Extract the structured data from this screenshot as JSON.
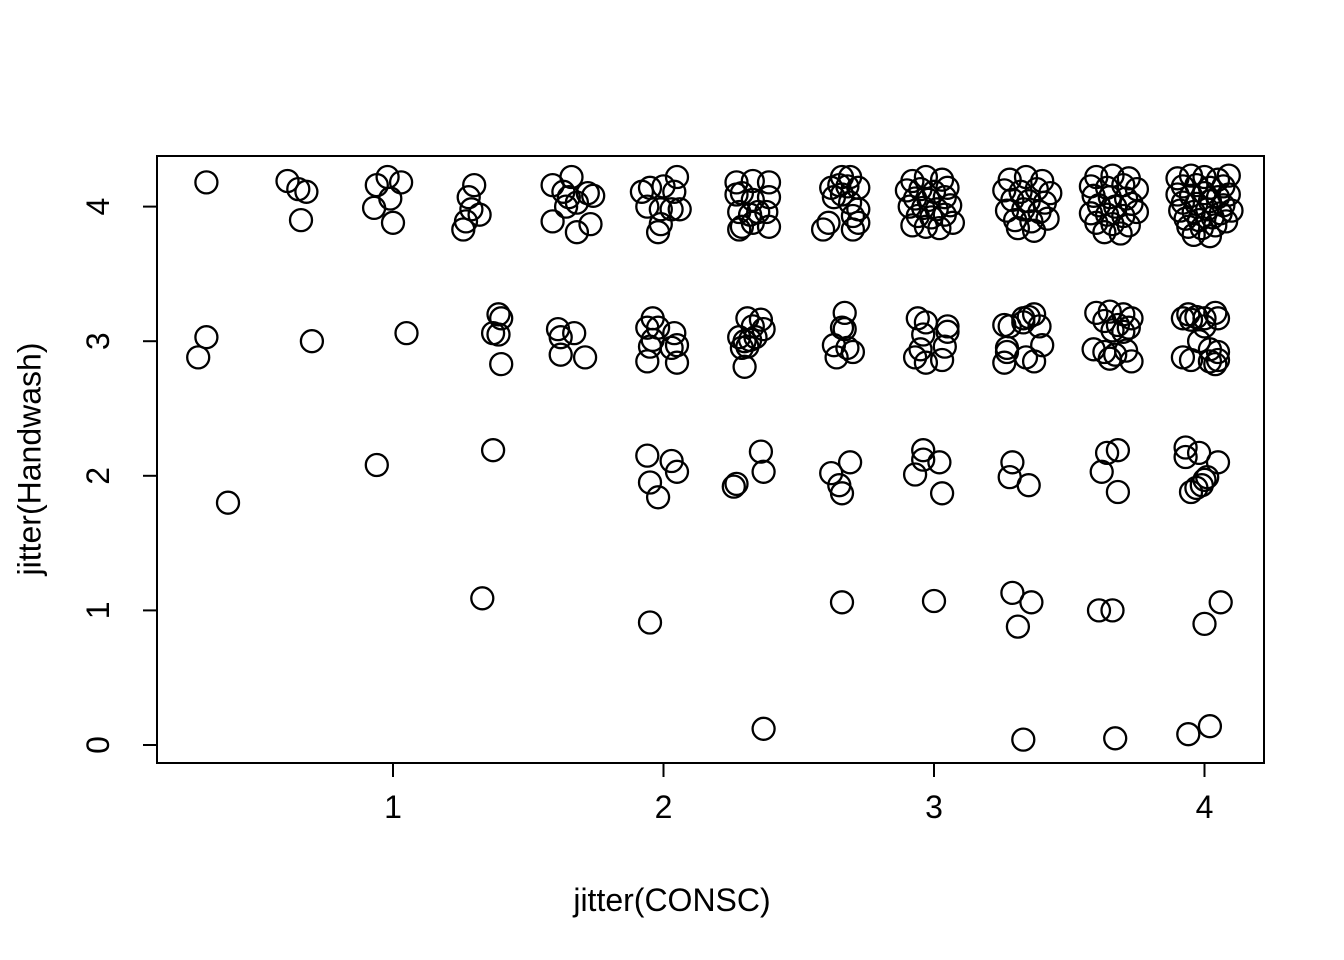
{
  "figure": {
    "background": "#ffffff",
    "foreground": "#000000"
  },
  "chart_data": {
    "type": "scatter",
    "title": "",
    "xlabel": "jitter(CONSC)",
    "ylabel": "jitter(Handwash)",
    "x_ticks": [
      1,
      2,
      3,
      4
    ],
    "y_ticks": [
      0,
      1,
      2,
      3,
      4
    ],
    "xlim": [
      0.12,
      4.22
    ],
    "ylim": [
      -0.12,
      4.37
    ],
    "grid": false,
    "legend": null,
    "marker": {
      "shape": "open-circle",
      "color": "#000000",
      "radius_px": 11,
      "stroke_px": 2.3
    },
    "description": "Jittered scatter of Handwash rating (0-4) vs CONSC score (thirds from 1/3 to 4); point density increases toward high CONSC and high Handwash",
    "points": [
      [
        0.31,
        4.18
      ],
      [
        0.61,
        4.19
      ],
      [
        0.65,
        4.13
      ],
      [
        0.68,
        4.11
      ],
      [
        0.66,
        3.9
      ],
      [
        0.94,
        4.16
      ],
      [
        0.98,
        4.22
      ],
      [
        1.03,
        4.18
      ],
      [
        0.99,
        4.06
      ],
      [
        0.93,
        3.99
      ],
      [
        1.0,
        3.88
      ],
      [
        1.3,
        4.16
      ],
      [
        1.28,
        4.07
      ],
      [
        1.29,
        3.98
      ],
      [
        1.27,
        3.89
      ],
      [
        1.26,
        3.83
      ],
      [
        1.32,
        3.94
      ],
      [
        1.66,
        4.22
      ],
      [
        1.59,
        4.16
      ],
      [
        1.63,
        4.11
      ],
      [
        1.65,
        4.07
      ],
      [
        1.68,
        4.03
      ],
      [
        1.72,
        4.1
      ],
      [
        1.74,
        4.08
      ],
      [
        1.64,
        4.0
      ],
      [
        1.59,
        3.89
      ],
      [
        1.68,
        3.81
      ],
      [
        1.73,
        3.87
      ],
      [
        2.05,
        4.22
      ],
      [
        1.95,
        4.14
      ],
      [
        1.92,
        4.11
      ],
      [
        2.0,
        4.15
      ],
      [
        2.04,
        4.11
      ],
      [
        1.94,
        4.0
      ],
      [
        1.99,
        3.98
      ],
      [
        2.03,
        3.98
      ],
      [
        2.06,
        3.98
      ],
      [
        1.99,
        3.87
      ],
      [
        1.98,
        3.81
      ],
      [
        2.27,
        4.18
      ],
      [
        2.33,
        4.19
      ],
      [
        2.39,
        4.18
      ],
      [
        2.27,
        4.09
      ],
      [
        2.29,
        4.1
      ],
      [
        2.39,
        4.07
      ],
      [
        2.33,
        4.05
      ],
      [
        2.28,
        3.96
      ],
      [
        2.32,
        3.94
      ],
      [
        2.35,
        3.96
      ],
      [
        2.38,
        3.96
      ],
      [
        2.29,
        3.85
      ],
      [
        2.28,
        3.83
      ],
      [
        2.33,
        3.88
      ],
      [
        2.39,
        3.85
      ],
      [
        2.66,
        4.22
      ],
      [
        2.69,
        4.22
      ],
      [
        2.62,
        4.14
      ],
      [
        2.65,
        4.16
      ],
      [
        2.68,
        4.15
      ],
      [
        2.72,
        4.14
      ],
      [
        2.63,
        4.07
      ],
      [
        2.66,
        4.09
      ],
      [
        2.69,
        4.03
      ],
      [
        2.72,
        3.98
      ],
      [
        2.7,
        3.93
      ],
      [
        2.72,
        3.88
      ],
      [
        2.7,
        3.83
      ],
      [
        2.61,
        3.88
      ],
      [
        2.59,
        3.83
      ],
      [
        2.92,
        4.19
      ],
      [
        2.97,
        4.22
      ],
      [
        3.03,
        4.2
      ],
      [
        2.9,
        4.12
      ],
      [
        2.95,
        4.13
      ],
      [
        3.0,
        4.11
      ],
      [
        3.05,
        4.14
      ],
      [
        2.93,
        4.06
      ],
      [
        2.98,
        4.05
      ],
      [
        3.04,
        4.07
      ],
      [
        2.91,
        4.0
      ],
      [
        2.96,
        3.99
      ],
      [
        3.01,
        3.98
      ],
      [
        3.06,
        4.01
      ],
      [
        2.94,
        3.93
      ],
      [
        2.99,
        3.92
      ],
      [
        3.04,
        3.94
      ],
      [
        2.92,
        3.86
      ],
      [
        2.97,
        3.85
      ],
      [
        3.02,
        3.84
      ],
      [
        3.07,
        3.88
      ],
      [
        3.28,
        4.2
      ],
      [
        3.34,
        4.22
      ],
      [
        3.4,
        4.19
      ],
      [
        3.26,
        4.12
      ],
      [
        3.32,
        4.11
      ],
      [
        3.38,
        4.13
      ],
      [
        3.43,
        4.1
      ],
      [
        3.29,
        4.05
      ],
      [
        3.35,
        4.04
      ],
      [
        3.41,
        4.03
      ],
      [
        3.27,
        3.97
      ],
      [
        3.33,
        3.98
      ],
      [
        3.39,
        3.96
      ],
      [
        3.3,
        3.9
      ],
      [
        3.36,
        3.89
      ],
      [
        3.42,
        3.91
      ],
      [
        3.31,
        3.84
      ],
      [
        3.37,
        3.82
      ],
      [
        3.6,
        4.22
      ],
      [
        3.66,
        4.23
      ],
      [
        3.72,
        4.21
      ],
      [
        3.58,
        4.15
      ],
      [
        3.64,
        4.14
      ],
      [
        3.7,
        4.16
      ],
      [
        3.75,
        4.13
      ],
      [
        3.59,
        4.08
      ],
      [
        3.65,
        4.07
      ],
      [
        3.71,
        4.06
      ],
      [
        3.61,
        4.01
      ],
      [
        3.67,
        4.0
      ],
      [
        3.73,
        4.02
      ],
      [
        3.58,
        3.95
      ],
      [
        3.64,
        3.94
      ],
      [
        3.7,
        3.93
      ],
      [
        3.75,
        3.96
      ],
      [
        3.6,
        3.88
      ],
      [
        3.66,
        3.87
      ],
      [
        3.72,
        3.86
      ],
      [
        3.63,
        3.81
      ],
      [
        3.69,
        3.8
      ],
      [
        3.9,
        4.21
      ],
      [
        3.95,
        4.23
      ],
      [
        4.0,
        4.22
      ],
      [
        4.05,
        4.2
      ],
      [
        4.09,
        4.23
      ],
      [
        3.92,
        4.15
      ],
      [
        3.97,
        4.16
      ],
      [
        4.02,
        4.14
      ],
      [
        4.07,
        4.15
      ],
      [
        3.9,
        4.09
      ],
      [
        3.95,
        4.08
      ],
      [
        4.0,
        4.1
      ],
      [
        4.05,
        4.07
      ],
      [
        4.09,
        4.09
      ],
      [
        3.92,
        4.03
      ],
      [
        3.97,
        4.02
      ],
      [
        4.02,
        4.04
      ],
      [
        4.07,
        4.01
      ],
      [
        3.91,
        3.97
      ],
      [
        3.96,
        3.96
      ],
      [
        4.01,
        3.98
      ],
      [
        4.06,
        3.95
      ],
      [
        4.1,
        3.97
      ],
      [
        3.93,
        3.91
      ],
      [
        3.98,
        3.9
      ],
      [
        4.03,
        3.92
      ],
      [
        4.08,
        3.89
      ],
      [
        3.94,
        3.85
      ],
      [
        3.99,
        3.84
      ],
      [
        4.04,
        3.86
      ],
      [
        3.96,
        3.79
      ],
      [
        4.02,
        3.78
      ],
      [
        0.31,
        3.03
      ],
      [
        0.28,
        2.88
      ],
      [
        0.7,
        3.0
      ],
      [
        1.05,
        3.06
      ],
      [
        1.39,
        3.2
      ],
      [
        1.4,
        3.17
      ],
      [
        1.37,
        3.06
      ],
      [
        1.39,
        3.05
      ],
      [
        1.4,
        2.83
      ],
      [
        1.61,
        3.09
      ],
      [
        1.62,
        3.03
      ],
      [
        1.67,
        3.06
      ],
      [
        1.62,
        2.9
      ],
      [
        1.71,
        2.88
      ],
      [
        1.96,
        3.17
      ],
      [
        1.94,
        3.1
      ],
      [
        1.98,
        3.1
      ],
      [
        2.04,
        3.06
      ],
      [
        1.96,
        3.01
      ],
      [
        1.95,
        2.96
      ],
      [
        2.03,
        2.95
      ],
      [
        2.05,
        2.97
      ],
      [
        1.94,
        2.85
      ],
      [
        2.05,
        2.84
      ],
      [
        2.31,
        3.17
      ],
      [
        2.36,
        3.16
      ],
      [
        2.37,
        3.09
      ],
      [
        2.33,
        3.11
      ],
      [
        2.28,
        3.03
      ],
      [
        2.3,
        3.0
      ],
      [
        2.32,
        3.01
      ],
      [
        2.34,
        3.03
      ],
      [
        2.29,
        2.95
      ],
      [
        2.31,
        2.96
      ],
      [
        2.3,
        2.81
      ],
      [
        2.67,
        3.21
      ],
      [
        2.66,
        3.1
      ],
      [
        2.67,
        3.09
      ],
      [
        2.63,
        2.97
      ],
      [
        2.68,
        2.95
      ],
      [
        2.7,
        2.92
      ],
      [
        2.64,
        2.88
      ],
      [
        2.94,
        3.17
      ],
      [
        2.97,
        3.14
      ],
      [
        2.96,
        3.05
      ],
      [
        3.05,
        3.11
      ],
      [
        3.05,
        3.07
      ],
      [
        3.04,
        2.96
      ],
      [
        2.95,
        2.94
      ],
      [
        2.93,
        2.88
      ],
      [
        2.97,
        2.84
      ],
      [
        3.03,
        2.86
      ],
      [
        3.26,
        3.12
      ],
      [
        3.28,
        3.11
      ],
      [
        3.33,
        3.17
      ],
      [
        3.35,
        3.18
      ],
      [
        3.33,
        3.14
      ],
      [
        3.37,
        3.2
      ],
      [
        3.39,
        3.11
      ],
      [
        3.4,
        2.97
      ],
      [
        3.27,
        2.95
      ],
      [
        3.27,
        2.92
      ],
      [
        3.26,
        2.84
      ],
      [
        3.34,
        2.88
      ],
      [
        3.37,
        2.85
      ],
      [
        3.6,
        3.21
      ],
      [
        3.65,
        3.22
      ],
      [
        3.7,
        3.2
      ],
      [
        3.73,
        3.17
      ],
      [
        3.63,
        3.15
      ],
      [
        3.68,
        3.12
      ],
      [
        3.72,
        3.1
      ],
      [
        3.66,
        3.08
      ],
      [
        3.7,
        3.07
      ],
      [
        3.59,
        2.94
      ],
      [
        3.63,
        2.92
      ],
      [
        3.67,
        2.9
      ],
      [
        3.71,
        2.93
      ],
      [
        3.65,
        2.87
      ],
      [
        3.73,
        2.85
      ],
      [
        3.92,
        3.17
      ],
      [
        3.94,
        3.2
      ],
      [
        3.95,
        3.16
      ],
      [
        3.97,
        3.18
      ],
      [
        4.0,
        3.17
      ],
      [
        4.04,
        3.21
      ],
      [
        4.05,
        3.17
      ],
      [
        4.0,
        3.11
      ],
      [
        3.98,
        3.0
      ],
      [
        3.92,
        2.88
      ],
      [
        3.95,
        2.86
      ],
      [
        4.02,
        2.94
      ],
      [
        4.05,
        2.92
      ],
      [
        4.02,
        2.85
      ],
      [
        4.04,
        2.83
      ],
      [
        4.05,
        2.86
      ],
      [
        0.39,
        1.8
      ],
      [
        0.94,
        2.08
      ],
      [
        1.37,
        2.19
      ],
      [
        1.94,
        2.15
      ],
      [
        2.03,
        2.11
      ],
      [
        2.05,
        2.03
      ],
      [
        1.95,
        1.95
      ],
      [
        1.98,
        1.84
      ],
      [
        2.36,
        2.18
      ],
      [
        2.37,
        2.03
      ],
      [
        2.26,
        1.92
      ],
      [
        2.27,
        1.94
      ],
      [
        2.69,
        2.1
      ],
      [
        2.62,
        2.02
      ],
      [
        2.65,
        1.93
      ],
      [
        2.66,
        1.87
      ],
      [
        2.96,
        2.19
      ],
      [
        2.96,
        2.12
      ],
      [
        3.02,
        2.1
      ],
      [
        2.93,
        2.01
      ],
      [
        3.03,
        1.87
      ],
      [
        3.29,
        2.1
      ],
      [
        3.28,
        1.99
      ],
      [
        3.35,
        1.93
      ],
      [
        3.64,
        2.17
      ],
      [
        3.68,
        2.19
      ],
      [
        3.62,
        2.03
      ],
      [
        3.68,
        1.88
      ],
      [
        3.93,
        2.21
      ],
      [
        3.93,
        2.14
      ],
      [
        3.98,
        2.17
      ],
      [
        4.05,
        2.1
      ],
      [
        4.0,
        1.97
      ],
      [
        4.01,
        1.99
      ],
      [
        3.97,
        1.91
      ],
      [
        3.99,
        1.93
      ],
      [
        3.95,
        1.88
      ],
      [
        1.33,
        1.09
      ],
      [
        1.95,
        0.91
      ],
      [
        2.66,
        1.06
      ],
      [
        3.0,
        1.07
      ],
      [
        3.29,
        1.13
      ],
      [
        3.36,
        1.06
      ],
      [
        3.31,
        0.88
      ],
      [
        3.61,
        1.0
      ],
      [
        3.66,
        1.0
      ],
      [
        4.06,
        1.06
      ],
      [
        4.0,
        0.9
      ],
      [
        2.37,
        0.12
      ],
      [
        3.33,
        0.04
      ],
      [
        3.67,
        0.05
      ],
      [
        3.94,
        0.08
      ],
      [
        4.02,
        0.14
      ]
    ]
  }
}
